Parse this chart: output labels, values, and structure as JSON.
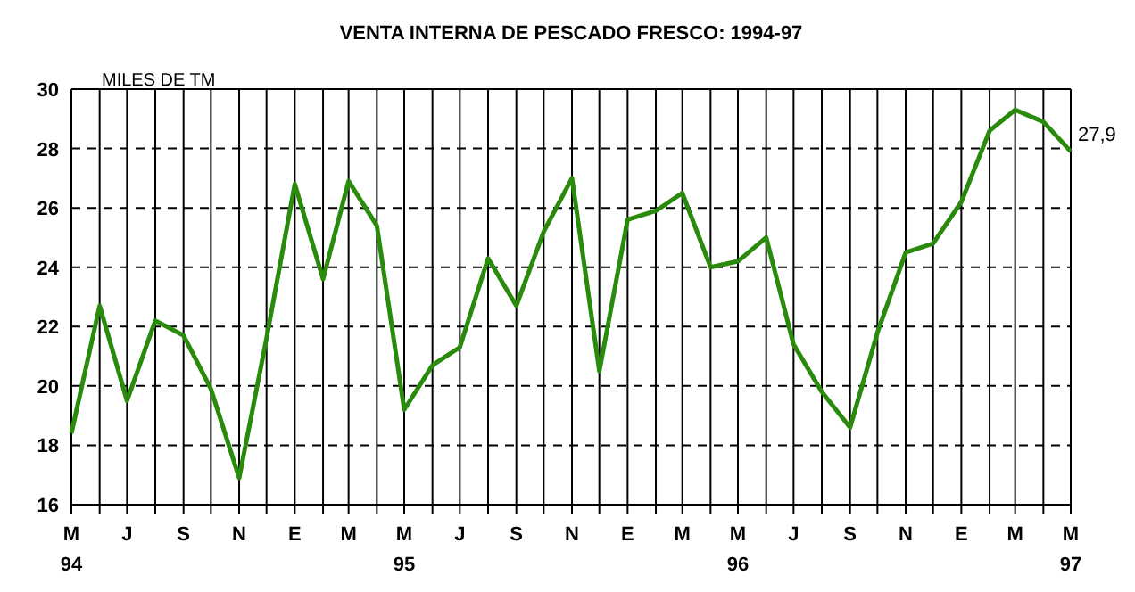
{
  "chart_data": {
    "type": "line",
    "title": "VENTA INTERNA DE PESCADO FRESCO: 1994-97",
    "ylabel": "MILES DE TM",
    "x": [
      "1994-05",
      "1994-06",
      "1994-07",
      "1994-08",
      "1994-09",
      "1994-10",
      "1994-11",
      "1994-12",
      "1995-01",
      "1995-02",
      "1995-03",
      "1995-04",
      "1995-05",
      "1995-06",
      "1995-07",
      "1995-08",
      "1995-09",
      "1995-10",
      "1995-11",
      "1995-12",
      "1996-01",
      "1996-02",
      "1996-03",
      "1996-04",
      "1996-05",
      "1996-06",
      "1996-07",
      "1996-08",
      "1996-09",
      "1996-10",
      "1996-11",
      "1996-12",
      "1997-01",
      "1997-02",
      "1997-03",
      "1997-04",
      "1997-05"
    ],
    "series": [
      {
        "color": "#2a8a0c",
        "values": [
          18.4,
          22.7,
          19.5,
          22.2,
          21.7,
          19.9,
          16.9,
          21.6,
          26.8,
          23.6,
          26.9,
          25.4,
          19.2,
          20.7,
          21.3,
          24.3,
          22.7,
          25.2,
          27.0,
          20.5,
          25.6,
          25.9,
          26.5,
          24.0,
          24.2,
          25.0,
          21.4,
          19.8,
          18.6,
          21.8,
          24.5,
          24.8,
          26.2,
          28.6,
          29.3,
          28.9,
          27.9
        ],
        "value_labels": [
          null,
          null,
          null,
          null,
          null,
          null,
          null,
          null,
          null,
          null,
          null,
          null,
          null,
          null,
          null,
          null,
          null,
          null,
          null,
          null,
          null,
          null,
          null,
          null,
          null,
          null,
          null,
          null,
          null,
          null,
          null,
          null,
          null,
          null,
          null,
          null,
          "27,9"
        ]
      }
    ],
    "xlim": [
      "1994-05",
      "1997-05"
    ],
    "xticks": [
      {
        "value": "1994-05",
        "label": "M\n94"
      },
      {
        "value": "1994-06",
        "label": null
      },
      {
        "value": "1994-07",
        "label": "J"
      },
      {
        "value": "1994-08",
        "label": null
      },
      {
        "value": "1994-09",
        "label": "S"
      },
      {
        "value": "1994-10",
        "label": null
      },
      {
        "value": "1994-11",
        "label": "N"
      },
      {
        "value": "1994-12",
        "label": null
      },
      {
        "value": "1995-01",
        "label": "E"
      },
      {
        "value": "1995-02",
        "label": null
      },
      {
        "value": "1995-03",
        "label": "M"
      },
      {
        "value": "1995-04",
        "label": null
      },
      {
        "value": "1995-05",
        "label": "M\n95"
      },
      {
        "value": "1995-06",
        "label": null
      },
      {
        "value": "1995-07",
        "label": "J"
      },
      {
        "value": "1995-08",
        "label": null
      },
      {
        "value": "1995-09",
        "label": "S"
      },
      {
        "value": "1995-10",
        "label": null
      },
      {
        "value": "1995-11",
        "label": "N"
      },
      {
        "value": "1995-12",
        "label": null
      },
      {
        "value": "1996-01",
        "label": "E"
      },
      {
        "value": "1996-02",
        "label": null
      },
      {
        "value": "1996-03",
        "label": "M"
      },
      {
        "value": "1996-04",
        "label": null
      },
      {
        "value": "1996-05",
        "label": "M\n96"
      },
      {
        "value": "1996-06",
        "label": null
      },
      {
        "value": "1996-07",
        "label": "J"
      },
      {
        "value": "1996-08",
        "label": null
      },
      {
        "value": "1996-09",
        "label": "S"
      },
      {
        "value": "1996-10",
        "label": null
      },
      {
        "value": "1996-11",
        "label": "N"
      },
      {
        "value": "1996-12",
        "label": null
      },
      {
        "value": "1997-01",
        "label": "E"
      },
      {
        "value": "1997-02",
        "label": null
      },
      {
        "value": "1997-03",
        "label": "M"
      },
      {
        "value": "1997-04",
        "label": null
      },
      {
        "value": "1997-05",
        "label": "M\n97"
      }
    ],
    "ylim": [
      16,
      30
    ],
    "yticks": [
      16,
      18,
      20,
      22,
      24,
      26,
      28,
      30
    ],
    "grid": true,
    "marker": "none",
    "line_style": "solid"
  }
}
